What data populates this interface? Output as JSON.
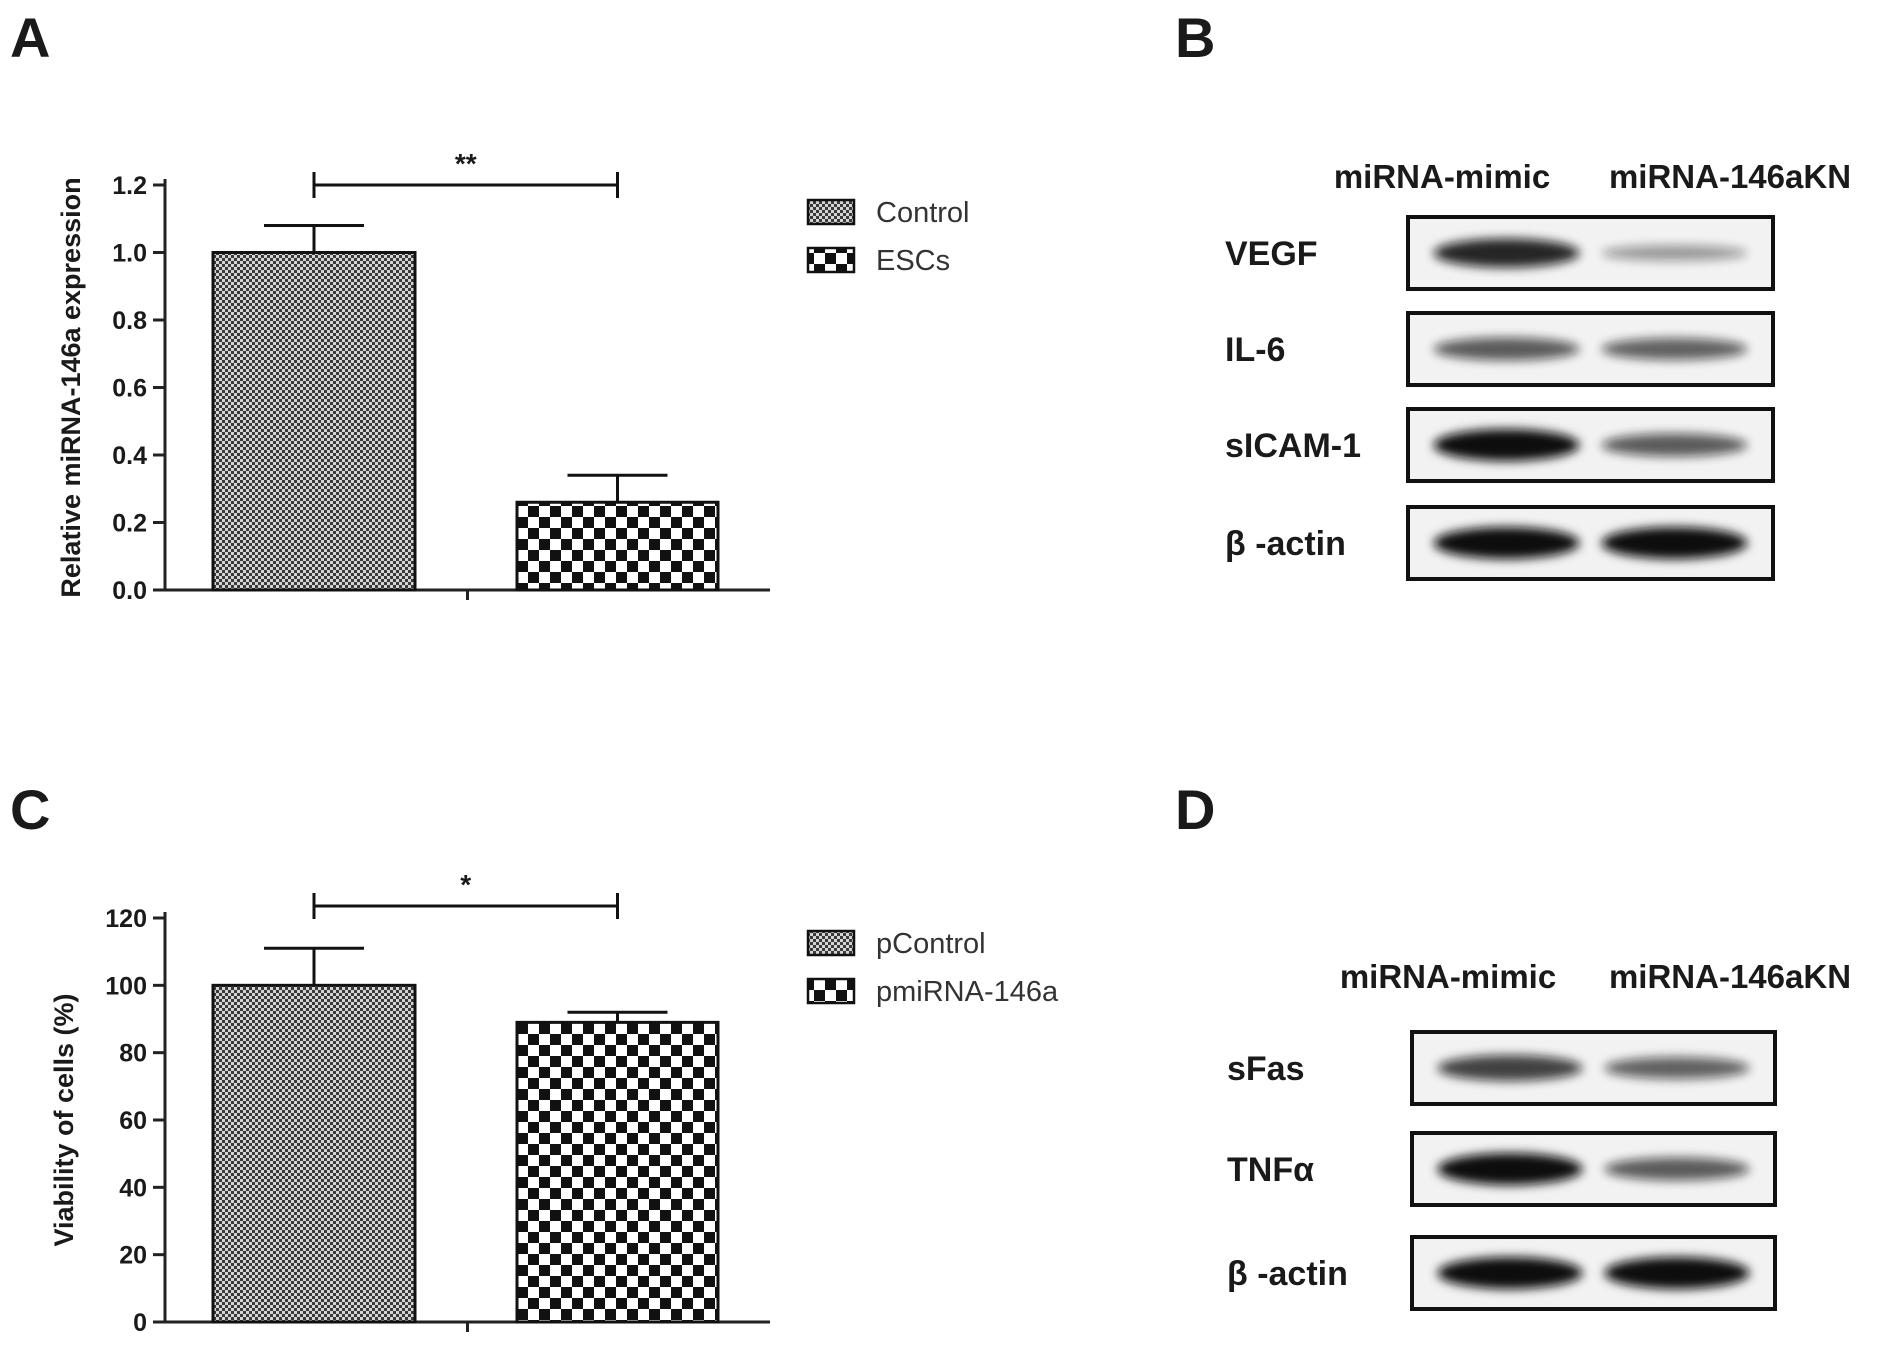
{
  "panels": {
    "A": "A",
    "B": "B",
    "C": "C",
    "D": "D"
  },
  "chart_data": [
    {
      "panel": "A",
      "type": "bar",
      "categories": [
        "Control",
        "ESCs"
      ],
      "values": [
        1.0,
        0.26
      ],
      "errors": [
        0.08,
        0.08
      ],
      "ylabel": "Relative miRNA-146a expression",
      "ylim": [
        0,
        1.2
      ],
      "yticks": [
        "0.0",
        "0.2",
        "0.4",
        "0.6",
        "0.8",
        "1.0",
        "1.2"
      ],
      "significance": "**",
      "legend": [
        "Control",
        "ESCs"
      ],
      "legend_position": "right"
    },
    {
      "panel": "C",
      "type": "bar",
      "categories": [
        "pControl",
        "pmiRNA-146a"
      ],
      "values": [
        100,
        89
      ],
      "errors": [
        11,
        3
      ],
      "ylabel": "Viability of cells (%)",
      "ylim": [
        0,
        120
      ],
      "yticks": [
        "0",
        "20",
        "40",
        "60",
        "80",
        "100",
        "120"
      ],
      "significance": "*",
      "legend": [
        "pControl",
        "pmiRNA-146a"
      ],
      "legend_position": "right"
    }
  ],
  "blots": {
    "B": {
      "columns": [
        "miRNA-mimic",
        "miRNA-146aKN"
      ],
      "rows": [
        "VEGF",
        "IL-6",
        "sICAM-1",
        "β -actin"
      ]
    },
    "D": {
      "columns": [
        "miRNA-mimic",
        "miRNA-146aKN"
      ],
      "rows": [
        "sFas",
        "TNFα",
        "β -actin"
      ]
    }
  }
}
